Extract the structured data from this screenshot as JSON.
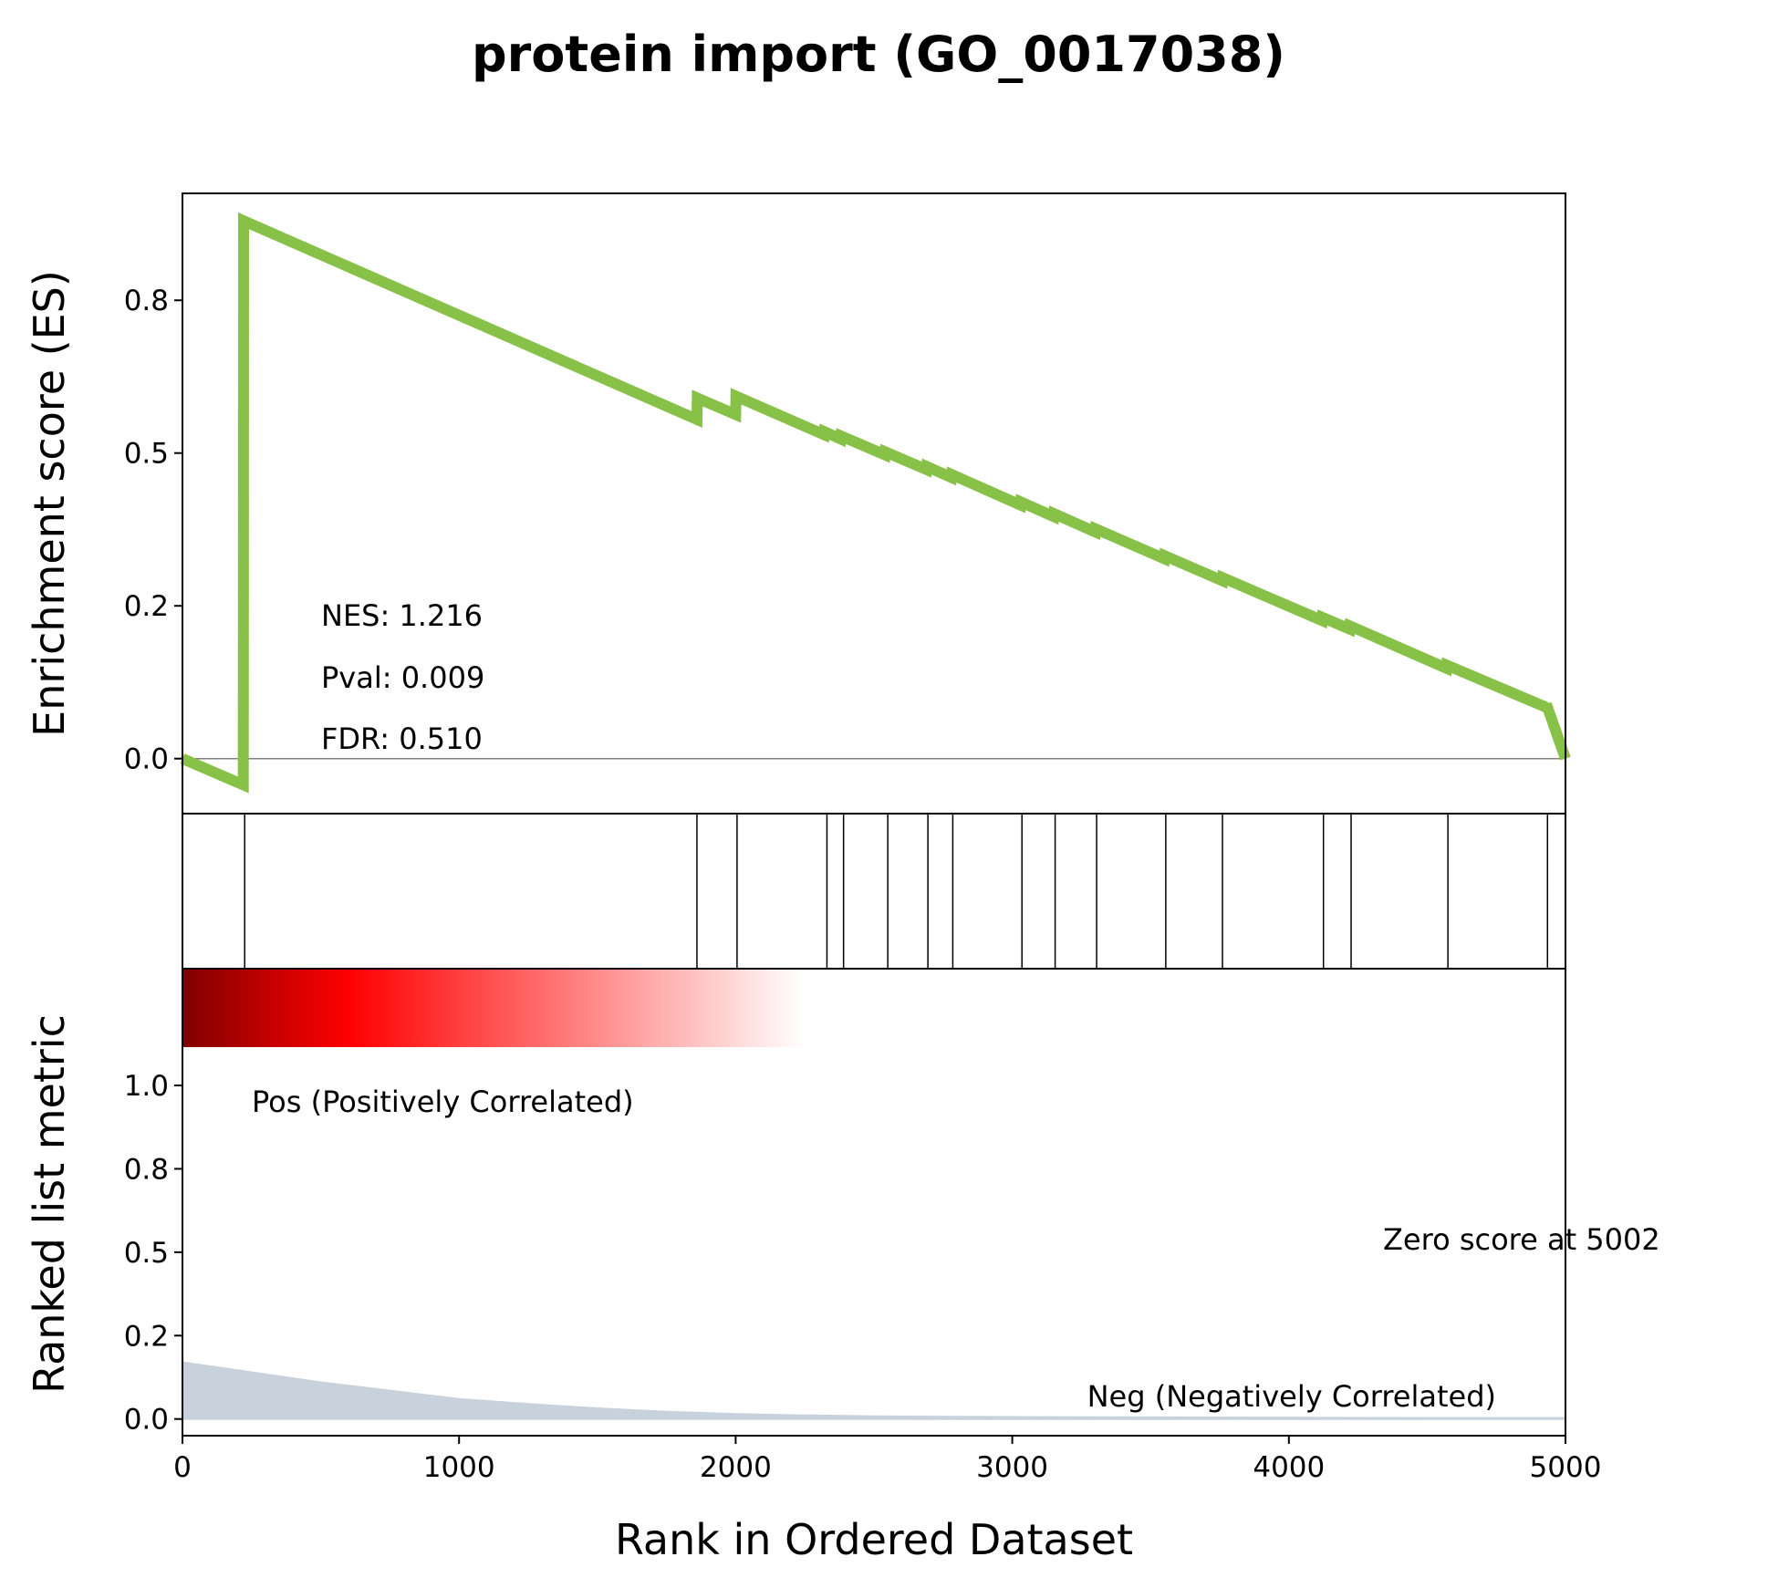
{
  "chart_data": {
    "type": "line",
    "title": "protein import (GO_0017038)",
    "xlabel": "Rank in Ordered Dataset",
    "xlim": [
      0,
      5000
    ],
    "x_ticks": [
      "0",
      "1000",
      "2000",
      "3000",
      "4000",
      "5000"
    ],
    "es_panel": {
      "ylabel": "Enrichment score (ES)",
      "ylim": [
        -0.09,
        0.925
      ],
      "y_ticks": [
        {
          "value": 0.0,
          "label": "0.0"
        },
        {
          "value": 0.25,
          "label": "0.2"
        },
        {
          "value": 0.5,
          "label": "0.5"
        },
        {
          "value": 0.75,
          "label": "0.8"
        }
      ],
      "line_color": "#88c148",
      "stats": {
        "nes": "NES: 1.216",
        "pval": "Pval: 0.009",
        "fdr": "FDR: 0.510"
      },
      "es_curve": {
        "x": [
          0,
          220,
          221,
          1860,
          1861,
          2000,
          2001,
          2320,
          2321,
          2380,
          2381,
          2540,
          2541,
          2690,
          2691,
          2780,
          2781,
          3030,
          3031,
          3150,
          3151,
          3300,
          3301,
          3550,
          3551,
          3760,
          3761,
          4120,
          4121,
          4220,
          4221,
          4570,
          4571,
          4930,
          4931,
          5000
        ],
        "y": [
          0.0,
          -0.043,
          0.88,
          0.555,
          0.59,
          0.563,
          0.593,
          0.53,
          0.535,
          0.523,
          0.528,
          0.497,
          0.502,
          0.473,
          0.478,
          0.46,
          0.465,
          0.415,
          0.42,
          0.396,
          0.401,
          0.371,
          0.376,
          0.327,
          0.332,
          0.291,
          0.296,
          0.226,
          0.231,
          0.212,
          0.217,
          0.148,
          0.153,
          0.084,
          0.089,
          0.0
        ]
      }
    },
    "hits_panel": {
      "hit_ranks": [
        225,
        1860,
        2005,
        2330,
        2390,
        2550,
        2695,
        2785,
        3035,
        3155,
        3305,
        3555,
        3760,
        4125,
        4225,
        4575,
        4935
      ]
    },
    "metric_panel": {
      "ylabel": "Ranked list metric",
      "ylim": [
        -0.05,
        1.35
      ],
      "y_ticks": [
        {
          "value": 0.0,
          "label": "0.0"
        },
        {
          "value": 0.25,
          "label": "0.2"
        },
        {
          "value": 0.5,
          "label": "0.5"
        },
        {
          "value": 0.75,
          "label": "0.8"
        },
        {
          "value": 1.0,
          "label": "1.0"
        }
      ],
      "heatmap_colors": [
        "#800000",
        "#ff0000",
        "#ffffff"
      ],
      "pos_label": "Pos (Positively Correlated)",
      "pos_color": "#ff0000",
      "neg_label": "Neg (Negatively Correlated)",
      "neg_color": "#0000ff",
      "zero_label": "Zero score at 5002",
      "fill_color": "#c8d2dc",
      "metric_curve": {
        "x": [
          0,
          250,
          500,
          750,
          1000,
          1250,
          1500,
          1750,
          2000,
          2250,
          2500,
          3000,
          3500,
          4000,
          4500,
          5000
        ],
        "y": [
          0.17,
          0.14,
          0.11,
          0.085,
          0.06,
          0.045,
          0.032,
          0.022,
          0.015,
          0.011,
          0.008,
          0.006,
          0.005,
          0.004,
          0.003,
          0.003
        ]
      }
    }
  }
}
